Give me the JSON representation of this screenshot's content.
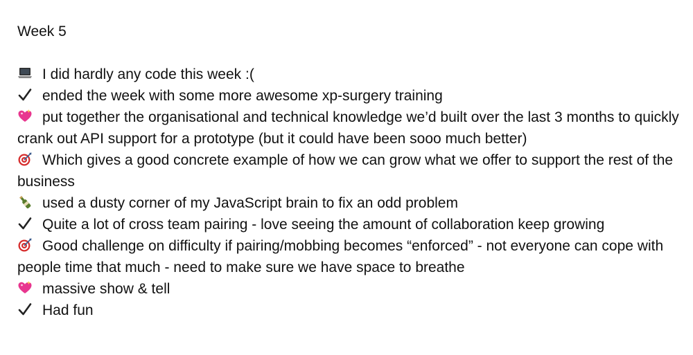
{
  "document": {
    "title": "Week 5",
    "entries": [
      {
        "icon": "laptop-icon",
        "text": "I did hardly any code this week :("
      },
      {
        "icon": "check-mark-icon",
        "text": "ended the week with some more awesome xp-surgery training"
      },
      {
        "icon": "sparkling-heart-icon",
        "text": "put together the organisational and technical knowledge we’d built over the last 3 months to quickly crank out API support for a prototype (but it could have been sooo much better)"
      },
      {
        "icon": "direct-hit-icon",
        "text": "Which gives a good concrete example of how we can grow what we offer to support the rest of the business"
      },
      {
        "icon": "bottle-icon",
        "text": "used a dusty corner of my JavaScript brain to fix an odd problem"
      },
      {
        "icon": "check-mark-icon",
        "text": "Quite a lot of cross team pairing - love seeing the amount of collaboration keep growing"
      },
      {
        "icon": "direct-hit-icon",
        "text": "Good challenge on difficulty if pairing/mobbing becomes “enforced” - not everyone can cope with people time that much - need to make sure we have space to breathe"
      },
      {
        "icon": "sparkling-heart-icon",
        "text": "massive show & tell"
      },
      {
        "icon": "check-mark-icon",
        "text": "Had fun"
      }
    ]
  },
  "colors": {
    "text": "#111111",
    "heart": "#e8368f",
    "target": "#d62d2d",
    "bottle": "#5a7d2e"
  }
}
